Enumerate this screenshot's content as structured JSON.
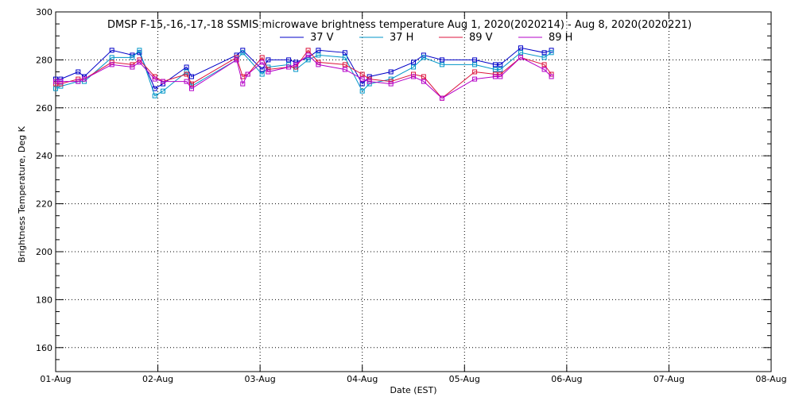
{
  "chart_data": {
    "type": "line",
    "title": "DMSP F-15,-16,-17,-18 SSMIS microwave brightness temperature Aug  1, 2020(2020214) - Aug  8, 2020(2020221)",
    "xlabel": "Date (EST)",
    "ylabel": "Brightness Temperature, Deg K",
    "x_ticks": [
      "01-Aug",
      "02-Aug",
      "03-Aug",
      "04-Aug",
      "05-Aug",
      "06-Aug",
      "07-Aug",
      "08-Aug"
    ],
    "xlim_days": [
      0,
      7
    ],
    "ylim": [
      150,
      300
    ],
    "y_ticks": [
      160,
      180,
      200,
      220,
      240,
      260,
      280,
      300
    ],
    "grid": true,
    "legend_position": "top-center",
    "series": [
      {
        "name": "37 V",
        "color": "#0000c8",
        "points": [
          [
            0.0,
            272
          ],
          [
            0.05,
            272
          ],
          [
            0.22,
            275
          ],
          [
            0.28,
            273
          ],
          [
            0.55,
            284
          ],
          [
            0.75,
            282
          ],
          [
            0.82,
            283
          ],
          [
            0.97,
            268
          ],
          [
            1.05,
            270
          ],
          [
            1.28,
            277
          ],
          [
            1.33,
            273
          ],
          [
            1.77,
            282
          ],
          [
            1.83,
            284
          ],
          [
            2.02,
            276
          ],
          [
            2.08,
            280
          ],
          [
            2.28,
            280
          ],
          [
            2.35,
            279
          ],
          [
            2.47,
            281
          ],
          [
            2.57,
            284
          ],
          [
            2.83,
            283
          ],
          [
            3.0,
            270
          ],
          [
            3.07,
            273
          ],
          [
            3.28,
            275
          ],
          [
            3.5,
            279
          ],
          [
            3.6,
            282
          ],
          [
            3.78,
            280
          ],
          [
            4.1,
            280
          ],
          [
            4.3,
            278
          ],
          [
            4.35,
            278
          ],
          [
            4.55,
            285
          ],
          [
            4.78,
            283
          ],
          [
            4.85,
            284
          ]
        ]
      },
      {
        "name": "37 H",
        "color": "#0096c8",
        "points": [
          [
            0.0,
            268
          ],
          [
            0.05,
            269
          ],
          [
            0.22,
            271
          ],
          [
            0.28,
            271
          ],
          [
            0.55,
            281
          ],
          [
            0.75,
            281
          ],
          [
            0.82,
            284
          ],
          [
            0.97,
            265
          ],
          [
            1.05,
            267
          ],
          [
            1.28,
            275
          ],
          [
            1.33,
            269
          ],
          [
            1.77,
            280
          ],
          [
            1.83,
            283
          ],
          [
            2.02,
            274
          ],
          [
            2.08,
            277
          ],
          [
            2.28,
            278
          ],
          [
            2.35,
            276
          ],
          [
            2.47,
            280
          ],
          [
            2.57,
            282
          ],
          [
            2.83,
            281
          ],
          [
            3.0,
            267
          ],
          [
            3.07,
            270
          ],
          [
            3.28,
            272
          ],
          [
            3.5,
            277
          ],
          [
            3.6,
            281
          ],
          [
            3.78,
            278
          ],
          [
            4.1,
            278
          ],
          [
            4.3,
            276
          ],
          [
            4.35,
            276
          ],
          [
            4.55,
            283
          ],
          [
            4.78,
            281
          ],
          [
            4.85,
            283
          ]
        ]
      },
      {
        "name": "89 V",
        "color": "#dc143c",
        "points": [
          [
            0.0,
            270
          ],
          [
            0.05,
            270
          ],
          [
            0.22,
            272
          ],
          [
            0.28,
            272
          ],
          [
            0.55,
            279
          ],
          [
            0.75,
            278
          ],
          [
            0.82,
            280
          ],
          [
            0.97,
            273
          ],
          [
            1.05,
            271
          ],
          [
            1.28,
            274
          ],
          [
            1.33,
            270
          ],
          [
            1.77,
            281
          ],
          [
            1.83,
            273
          ],
          [
            1.88,
            274
          ],
          [
            2.02,
            281
          ],
          [
            2.08,
            276
          ],
          [
            2.28,
            277
          ],
          [
            2.35,
            277
          ],
          [
            2.47,
            284
          ],
          [
            2.57,
            279
          ],
          [
            2.83,
            278
          ],
          [
            3.0,
            274
          ],
          [
            3.07,
            272
          ],
          [
            3.28,
            271
          ],
          [
            3.5,
            274
          ],
          [
            3.6,
            273
          ],
          [
            3.78,
            264
          ],
          [
            4.1,
            275
          ],
          [
            4.3,
            274
          ],
          [
            4.35,
            274
          ],
          [
            4.55,
            281
          ],
          [
            4.78,
            278
          ],
          [
            4.85,
            274
          ]
        ]
      },
      {
        "name": "89 H",
        "color": "#b400c8",
        "points": [
          [
            0.0,
            271
          ],
          [
            0.05,
            271
          ],
          [
            0.22,
            271
          ],
          [
            0.28,
            272
          ],
          [
            0.55,
            278
          ],
          [
            0.75,
            277
          ],
          [
            0.82,
            279
          ],
          [
            0.97,
            272
          ],
          [
            1.05,
            271
          ],
          [
            1.28,
            271
          ],
          [
            1.33,
            268
          ],
          [
            1.77,
            280
          ],
          [
            1.83,
            270
          ],
          [
            1.88,
            274
          ],
          [
            2.02,
            279
          ],
          [
            2.08,
            275
          ],
          [
            2.28,
            277
          ],
          [
            2.35,
            278
          ],
          [
            2.47,
            282
          ],
          [
            2.57,
            278
          ],
          [
            2.83,
            276
          ],
          [
            3.0,
            272
          ],
          [
            3.07,
            271
          ],
          [
            3.28,
            270
          ],
          [
            3.5,
            273
          ],
          [
            3.6,
            271
          ],
          [
            3.78,
            264
          ],
          [
            4.1,
            272
          ],
          [
            4.3,
            273
          ],
          [
            4.35,
            273
          ],
          [
            4.55,
            281
          ],
          [
            4.78,
            276
          ],
          [
            4.85,
            273
          ]
        ]
      }
    ]
  }
}
